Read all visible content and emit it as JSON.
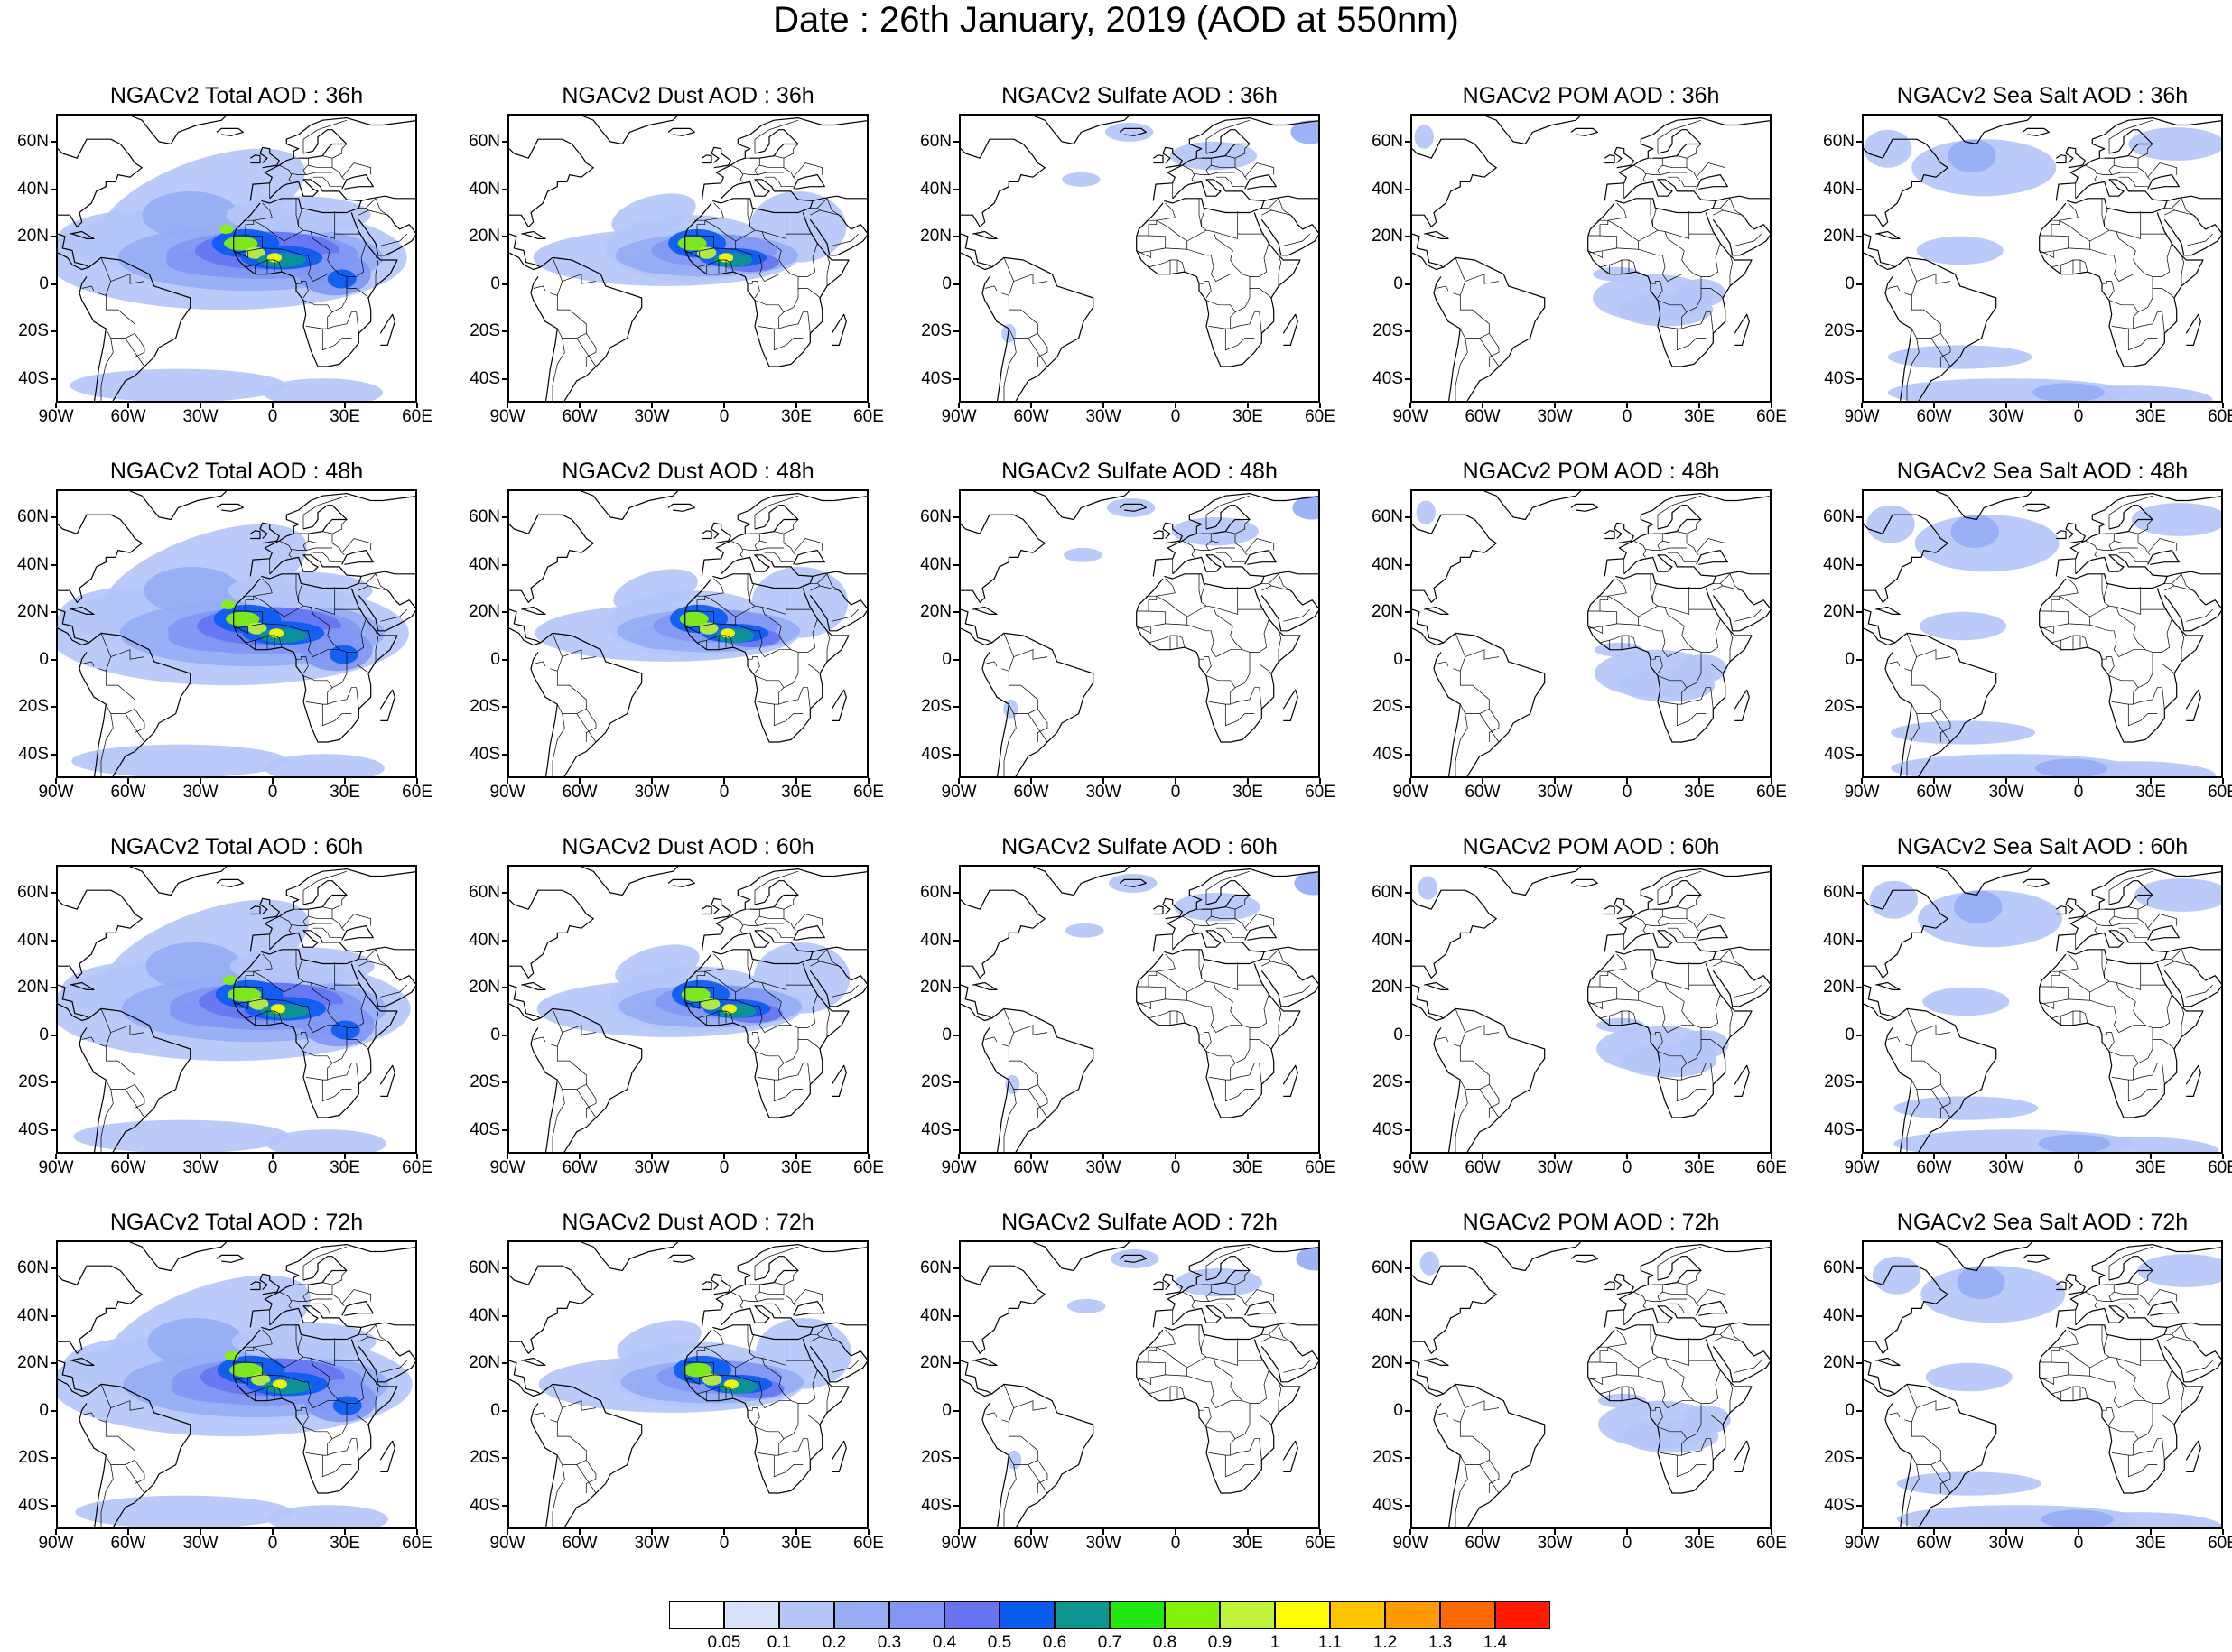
{
  "title": "Date : 26th January, 2019 (AOD at 550nm)",
  "lat_labels": [
    "60N",
    "40N",
    "20N",
    "0",
    "20S",
    "40S"
  ],
  "lat_values": [
    60,
    40,
    20,
    0,
    -20,
    -40
  ],
  "lon_labels": [
    "90W",
    "60W",
    "30W",
    "0",
    "30E",
    "60E"
  ],
  "lon_values": [
    -90,
    -60,
    -30,
    0,
    30,
    60
  ],
  "map_extent": {
    "lon": [
      -90,
      60
    ],
    "lat": [
      -50,
      72
    ]
  },
  "panels": [
    {
      "title": "NGACv2 Total AOD : 36h",
      "species": "total",
      "hour": 36
    },
    {
      "title": "NGACv2 Dust AOD : 36h",
      "species": "dust",
      "hour": 36
    },
    {
      "title": "NGACv2 Sulfate AOD : 36h",
      "species": "sulfate",
      "hour": 36
    },
    {
      "title": "NGACv2 POM AOD : 36h",
      "species": "pom",
      "hour": 36
    },
    {
      "title": "NGACv2 Sea Salt AOD : 36h",
      "species": "seasalt",
      "hour": 36
    },
    {
      "title": "NGACv2 Total AOD : 48h",
      "species": "total",
      "hour": 48
    },
    {
      "title": "NGACv2 Dust AOD : 48h",
      "species": "dust",
      "hour": 48
    },
    {
      "title": "NGACv2 Sulfate AOD : 48h",
      "species": "sulfate",
      "hour": 48
    },
    {
      "title": "NGACv2 POM AOD : 48h",
      "species": "pom",
      "hour": 48
    },
    {
      "title": "NGACv2 Sea Salt AOD : 48h",
      "species": "seasalt",
      "hour": 48
    },
    {
      "title": "NGACv2 Total AOD : 60h",
      "species": "total",
      "hour": 60
    },
    {
      "title": "NGACv2 Dust AOD : 60h",
      "species": "dust",
      "hour": 60
    },
    {
      "title": "NGACv2 Sulfate AOD : 60h",
      "species": "sulfate",
      "hour": 60
    },
    {
      "title": "NGACv2 POM AOD : 60h",
      "species": "pom",
      "hour": 60
    },
    {
      "title": "NGACv2 Sea Salt AOD : 60h",
      "species": "seasalt",
      "hour": 60
    },
    {
      "title": "NGACv2 Total AOD : 72h",
      "species": "total",
      "hour": 72
    },
    {
      "title": "NGACv2 Dust AOD : 72h",
      "species": "dust",
      "hour": 72
    },
    {
      "title": "NGACv2 Sulfate AOD : 72h",
      "species": "sulfate",
      "hour": 72
    },
    {
      "title": "NGACv2 POM AOD : 72h",
      "species": "pom",
      "hour": 72
    },
    {
      "title": "NGACv2 Sea Salt  AOD : 72h",
      "species": "seasalt",
      "hour": 72
    }
  ],
  "colorbar": {
    "labels": [
      "0.05",
      "0.1",
      "0.2",
      "0.3",
      "0.4",
      "0.5",
      "0.6",
      "0.7",
      "0.8",
      "0.9",
      "1",
      "1.1",
      "1.2",
      "1.3",
      "1.4"
    ],
    "colors": [
      "#ffffff",
      "#d7e1fb",
      "#b4c5f8",
      "#96acf5",
      "#8197f3",
      "#6674f1",
      "#0a5cf0",
      "#0d9690",
      "#22e812",
      "#86f20c",
      "#bff43b",
      "#ffff00",
      "#ffc400",
      "#ff9a00",
      "#ff6a00",
      "#ff1a00"
    ]
  }
}
